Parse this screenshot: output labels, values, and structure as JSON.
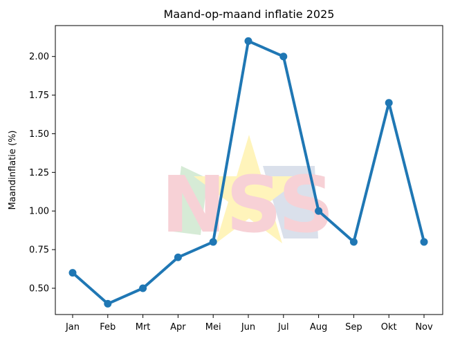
{
  "chart_data": {
    "type": "line",
    "title": "Maand-op-maand inflatie 2025",
    "xlabel": "",
    "ylabel": "Maandinflatie (%)",
    "categories": [
      "Jan",
      "Feb",
      "Mrt",
      "Apr",
      "Mei",
      "Jun",
      "Jul",
      "Aug",
      "Sep",
      "Okt",
      "Nov"
    ],
    "series": [
      {
        "values": [
          0.6,
          0.4,
          0.5,
          0.7,
          0.8,
          2.1,
          2.0,
          1.0,
          0.8,
          1.7,
          0.8
        ]
      }
    ],
    "ylim": [
      0.33,
      2.2
    ],
    "yticks": [
      0.5,
      0.75,
      1.0,
      1.25,
      1.5,
      1.75,
      2.0
    ],
    "ytick_labels": [
      "0.50",
      "0.75",
      "1.00",
      "1.25",
      "1.50",
      "1.75",
      "2.00"
    ],
    "grid": false,
    "legend": "none",
    "line_color": "#1f77b4",
    "watermark": {
      "text": "NSS",
      "colors": {
        "letters": "#f6c9cf",
        "star": "#fff3b0",
        "shape_green": "#cfe8cf",
        "shape_blue": "#d4dbe8"
      }
    }
  }
}
